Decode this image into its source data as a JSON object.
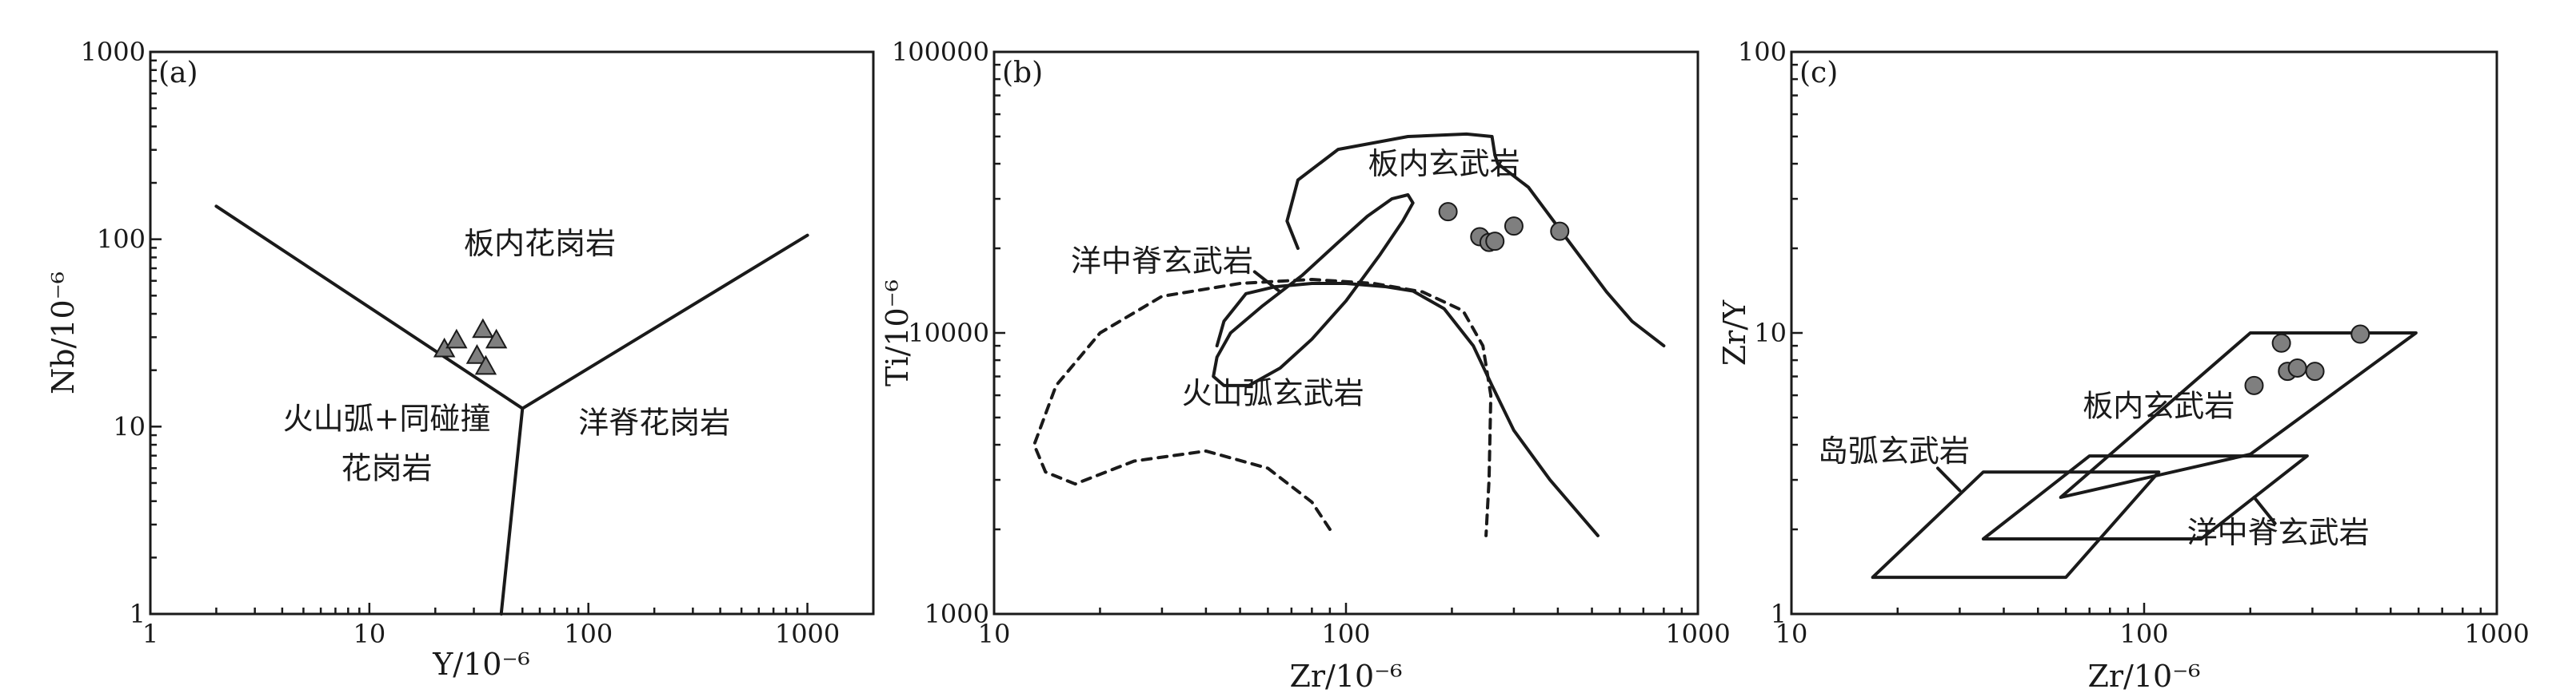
{
  "chart_data": [
    {
      "id": "a",
      "type": "scatter",
      "panel_tag": "(a)",
      "xlabel": "Y/10⁻⁶",
      "ylabel": "Nb/10⁻⁶",
      "xscale": "log",
      "yscale": "log",
      "xlim": [
        1,
        2000
      ],
      "ylim": [
        1,
        1000
      ],
      "xticks": [
        1,
        10,
        100,
        1000
      ],
      "yticks": [
        1,
        10,
        100,
        1000
      ],
      "marker": "triangle",
      "marker_color": "#7f7f7f",
      "points": [
        [
          22,
          26
        ],
        [
          25,
          29
        ],
        [
          31,
          24
        ],
        [
          33,
          33
        ],
        [
          34,
          21
        ],
        [
          38,
          29
        ]
      ],
      "field_labels": [
        {
          "text": "板内花岗岩",
          "x": 60,
          "y": 95
        },
        {
          "text": "火山弧+同碰撞",
          "x": 12,
          "y": 11
        },
        {
          "text": "花岗岩",
          "x": 12,
          "y": 6
        },
        {
          "text": "洋脊花岗岩",
          "x": 200,
          "y": 10.5
        }
      ],
      "boundaries": [
        {
          "style": "solid",
          "points": [
            [
              2,
              150
            ],
            [
              50,
              12.5
            ]
          ]
        },
        {
          "style": "solid",
          "points": [
            [
              50,
              12.5
            ],
            [
              1000,
              105
            ]
          ]
        },
        {
          "style": "solid",
          "points": [
            [
              50,
              12.5
            ],
            [
              40,
              1
            ]
          ]
        }
      ]
    },
    {
      "id": "b",
      "type": "scatter",
      "panel_tag": "(b)",
      "xlabel": "Zr/10⁻⁶",
      "ylabel": "Ti/10⁻⁶",
      "xscale": "log",
      "yscale": "log",
      "xlim": [
        10,
        1000
      ],
      "ylim": [
        1000,
        100000
      ],
      "xticks": [
        10,
        100,
        1000
      ],
      "yticks": [
        1000,
        10000,
        100000
      ],
      "marker": "circle",
      "marker_color": "#7f7f7f",
      "points": [
        [
          195,
          27000
        ],
        [
          240,
          22000
        ],
        [
          255,
          21000
        ],
        [
          265,
          21200
        ],
        [
          300,
          24000
        ],
        [
          405,
          23000
        ]
      ],
      "field_labels": [
        {
          "text": "板内玄武岩",
          "x": 190,
          "y": 40000
        },
        {
          "text": "洋中脊玄武岩",
          "x": 30,
          "y": 18000
        },
        {
          "text": "火山弧玄武岩",
          "x": 62,
          "y": 6100
        }
      ],
      "pointer": {
        "from": [
          55,
          16500
        ],
        "to": [
          65,
          14000
        ]
      },
      "boundaries": [
        {
          "style": "solid",
          "name": "within-plate",
          "points": [
            [
              43,
              9000
            ],
            [
              45,
              11000
            ],
            [
              52,
              13800
            ],
            [
              63,
              14600
            ],
            [
              80,
              15000
            ],
            [
              100,
              15000
            ],
            [
              130,
              14600
            ],
            [
              155,
              14100
            ],
            [
              190,
              12200
            ],
            [
              230,
              9000
            ],
            [
              260,
              6500
            ],
            [
              300,
              4500
            ],
            [
              380,
              3000
            ],
            [
              520,
              1900
            ]
          ]
        },
        {
          "style": "solid",
          "name": "within-plate-top",
          "points": [
            [
              73,
              20000
            ],
            [
              68,
              25000
            ],
            [
              73,
              35000
            ],
            [
              95,
              45000
            ],
            [
              150,
              50000
            ],
            [
              220,
              51000
            ],
            [
              260,
              50000
            ],
            [
              265,
              43000
            ],
            [
              270,
              40000
            ],
            [
              330,
              33000
            ],
            [
              420,
              22000
            ],
            [
              550,
              14000
            ],
            [
              650,
              11000
            ],
            [
              800,
              9000
            ]
          ]
        },
        {
          "style": "solid",
          "name": "morb-loop",
          "closed": true,
          "points": [
            [
              42,
              7000
            ],
            [
              45,
              6500
            ],
            [
              53,
              6500
            ],
            [
              65,
              7500
            ],
            [
              80,
              9500
            ],
            [
              100,
              13000
            ],
            [
              125,
              19000
            ],
            [
              145,
              25000
            ],
            [
              155,
              29000
            ],
            [
              150,
              31000
            ],
            [
              135,
              30000
            ],
            [
              115,
              26000
            ],
            [
              95,
              21000
            ],
            [
              75,
              16000
            ],
            [
              58,
              12500
            ],
            [
              47,
              10000
            ],
            [
              43,
              8200
            ]
          ]
        },
        {
          "style": "dashed",
          "name": "arc",
          "points": [
            [
              90,
              2000
            ],
            [
              80,
              2500
            ],
            [
              60,
              3300
            ],
            [
              40,
              3800
            ],
            [
              25,
              3500
            ],
            [
              17,
              2900
            ],
            [
              14,
              3200
            ],
            [
              13,
              4000
            ],
            [
              15,
              6500
            ],
            [
              20,
              10000
            ],
            [
              30,
              13500
            ],
            [
              50,
              15000
            ],
            [
              80,
              15500
            ],
            [
              120,
              15000
            ],
            [
              165,
              14000
            ],
            [
              215,
              12000
            ],
            [
              245,
              9000
            ],
            [
              258,
              6000
            ],
            [
              255,
              3000
            ],
            [
              250,
              1900
            ]
          ]
        }
      ]
    },
    {
      "id": "c",
      "type": "scatter",
      "panel_tag": "(c)",
      "xlabel": "Zr/10⁻⁶",
      "ylabel": "Zr/Y",
      "xscale": "log",
      "yscale": "log",
      "xlim": [
        10,
        1000
      ],
      "ylim": [
        1,
        100
      ],
      "xticks": [
        10,
        100,
        1000
      ],
      "yticks": [
        1,
        10,
        100
      ],
      "marker": "circle",
      "marker_color": "#7f7f7f",
      "points": [
        [
          205,
          6.5
        ],
        [
          245,
          9.2
        ],
        [
          255,
          7.3
        ],
        [
          272,
          7.5
        ],
        [
          305,
          7.3
        ],
        [
          410,
          9.9
        ]
      ],
      "field_labels": [
        {
          "text": "板内玄武岩",
          "x": 110,
          "y": 5.5
        },
        {
          "text": "岛弧玄武岩",
          "x": 19.5,
          "y": 3.8
        },
        {
          "text": "洋中脊玄武岩",
          "x": 240,
          "y": 1.95
        }
      ],
      "pointers": [
        {
          "from": [
            26,
            3.3
          ],
          "to": [
            30,
            2.75
          ]
        },
        {
          "from": [
            235,
            2.1
          ],
          "to": [
            205,
            2.6
          ]
        }
      ],
      "boundaries": [
        {
          "style": "solid",
          "name": "within-plate",
          "closed": true,
          "points": [
            [
              58,
              2.6
            ],
            [
              200,
              10
            ],
            [
              590,
              10
            ],
            [
              200,
              3.7
            ]
          ]
        },
        {
          "style": "solid",
          "name": "island-arc",
          "closed": true,
          "points": [
            [
              17,
              1.35
            ],
            [
              35,
              3.2
            ],
            [
              110,
              3.2
            ],
            [
              60,
              1.35
            ]
          ]
        },
        {
          "style": "solid",
          "name": "morb",
          "closed": true,
          "points": [
            [
              35,
              1.85
            ],
            [
              70,
              3.65
            ],
            [
              290,
              3.65
            ],
            [
              145,
              1.85
            ]
          ]
        }
      ]
    }
  ]
}
